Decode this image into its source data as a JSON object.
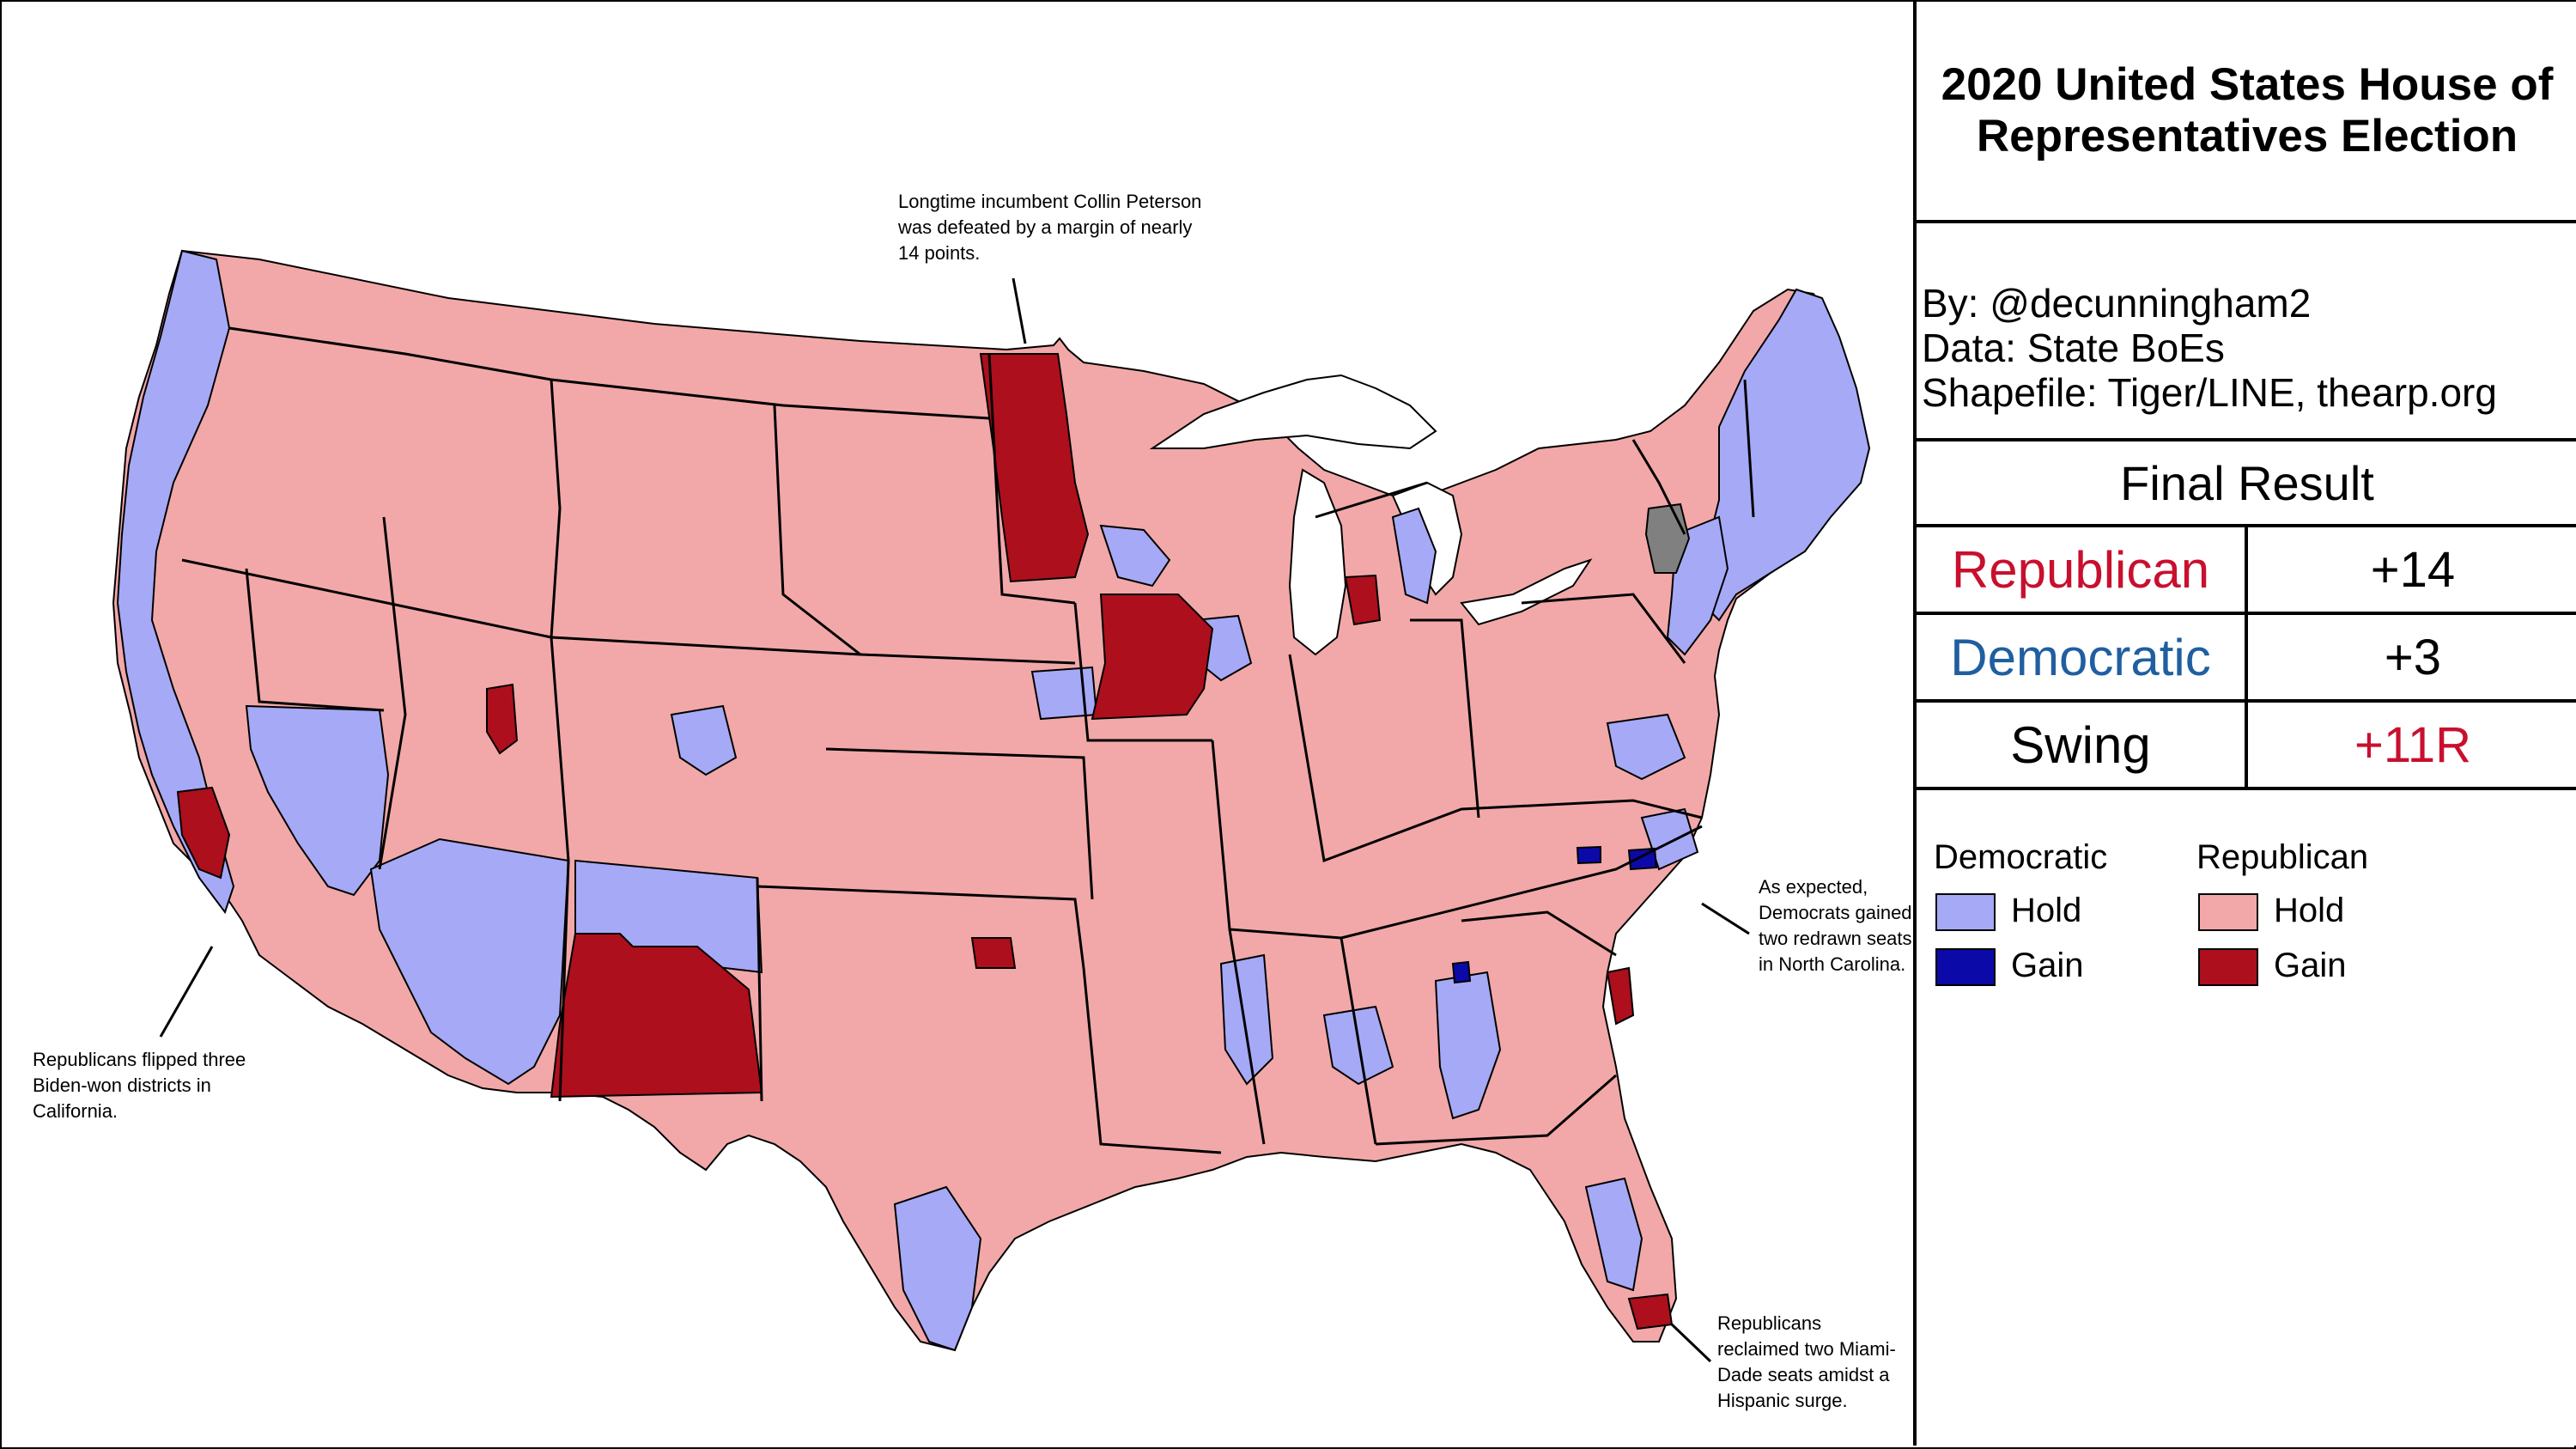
{
  "title": "2020 United States House of Representatives Election",
  "credits": {
    "by": "By: @decunningham2",
    "data": "Data: State BoEs",
    "shapefile": "Shapefile: Tiger/LINE, thearp.org"
  },
  "final_result": {
    "heading": "Final Result",
    "rows": [
      {
        "label": "Republican",
        "value": "+14",
        "label_color": "#c8102e",
        "value_color": "#000000"
      },
      {
        "label": "Democratic",
        "value": "+3",
        "label_color": "#1f5fa0",
        "value_color": "#000000"
      },
      {
        "label": "Swing",
        "value": "+11R",
        "label_color": "#000000",
        "value_color": "#c8102e"
      }
    ]
  },
  "legend": {
    "democratic_heading": "Democratic",
    "republican_heading": "Republican",
    "hold_label": "Hold",
    "gain_label": "Gain",
    "colors": {
      "dem_hold": "#a6a9f5",
      "dem_gain": "#0b0aa8",
      "rep_hold": "#f2a8a8",
      "rep_gain": "#ad0f1c",
      "vacant": "#808080"
    }
  },
  "annotations": {
    "peterson": "Longtime incumbent Collin Peterson was defeated by a margin of nearly 14 points.",
    "california": "Republicans flipped three Biden-won districts in California.",
    "north_carolina": "As expected, Democrats gained two redrawn seats in North Carolina.",
    "miami": "Republicans reclaimed two Miami-Dade seats amidst a Hispanic surge."
  }
}
